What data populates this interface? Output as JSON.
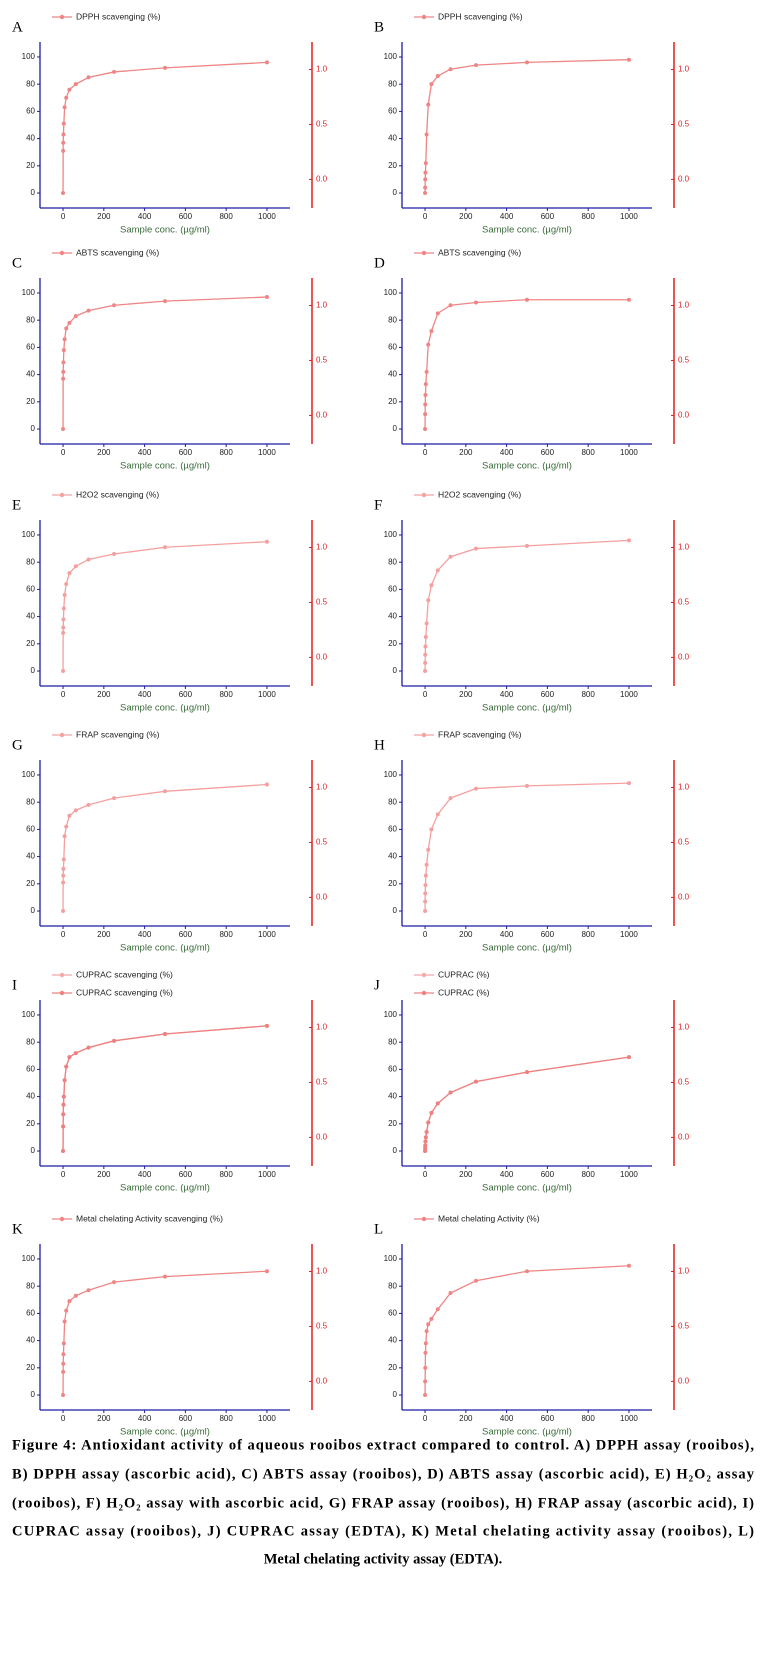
{
  "chart_data": [
    {
      "type": "line",
      "label": "A",
      "xlabel": "Sample conc. (µg/ml)",
      "x": [
        0,
        0.49,
        0.98,
        1.95,
        3.9,
        7.8,
        15.6,
        31.25,
        62.5,
        125,
        250,
        500,
        1000
      ],
      "series": [
        {
          "name": "DPPH scavenging (%)",
          "color": "#ef8585",
          "values": [
            0,
            31,
            37,
            43,
            51,
            63,
            70,
            76,
            80,
            85,
            89,
            92,
            96
          ]
        }
      ],
      "xlim": [
        -113,
        1113
      ],
      "xticks": [
        0,
        200,
        400,
        600,
        800,
        1000
      ],
      "ylim": [
        -11,
        111
      ],
      "yticks": [
        0,
        20,
        40,
        60,
        80,
        100
      ],
      "y2lim": [
        -0.26,
        1.25
      ],
      "y2ticks": [
        {
          "value": 0,
          "label": "0.0"
        },
        {
          "value": 0.5,
          "label": "0.5"
        },
        {
          "value": 1,
          "label": "1.0"
        }
      ]
    },
    {
      "type": "line",
      "label": "B",
      "xlabel": "Sample conc. (µg/ml)",
      "x": [
        0,
        0.49,
        0.98,
        1.95,
        3.9,
        7.8,
        15.6,
        31.25,
        62.5,
        125,
        250,
        500,
        1000
      ],
      "series": [
        {
          "name": "DPPH scavenging (%)",
          "color": "#ef8585",
          "values": [
            0,
            4,
            10,
            15,
            22,
            43,
            65,
            80,
            86,
            91,
            94,
            96,
            98
          ]
        }
      ],
      "xlim": [
        -113,
        1113
      ],
      "xticks": [
        0,
        200,
        400,
        600,
        800,
        1000
      ],
      "ylim": [
        -11,
        111
      ],
      "yticks": [
        0,
        20,
        40,
        60,
        80,
        100
      ],
      "y2lim": [
        -0.26,
        1.25
      ],
      "y2ticks": [
        {
          "value": 0,
          "label": "0.0"
        },
        {
          "value": 0.5,
          "label": "0.5"
        },
        {
          "value": 1,
          "label": "1.0"
        }
      ]
    },
    {
      "type": "line",
      "label": "C",
      "xlabel": "Sample conc. (µg/ml)",
      "x": [
        0,
        0.49,
        0.98,
        1.95,
        3.9,
        7.8,
        15.6,
        31.25,
        62.5,
        125,
        250,
        500,
        1000
      ],
      "series": [
        {
          "name": "ABTS scavenging (%)",
          "color": "#ef8585",
          "values": [
            0,
            37,
            42,
            49,
            58,
            66,
            74,
            78,
            83,
            87,
            91,
            94,
            97
          ]
        }
      ],
      "xlim": [
        -113,
        1113
      ],
      "xticks": [
        0,
        200,
        400,
        600,
        800,
        1000
      ],
      "ylim": [
        -11,
        111
      ],
      "yticks": [
        0,
        20,
        40,
        60,
        80,
        100
      ],
      "y2lim": [
        -0.26,
        1.25
      ],
      "y2ticks": [
        {
          "value": 0,
          "label": "0.0"
        },
        {
          "value": 0.5,
          "label": "0.5"
        },
        {
          "value": 1,
          "label": "1.0"
        }
      ]
    },
    {
      "type": "line",
      "label": "D",
      "xlabel": "Sample conc. (µg/ml)",
      "x": [
        0,
        0.49,
        0.98,
        1.95,
        3.9,
        7.8,
        15.6,
        31.25,
        62.5,
        125,
        250,
        500,
        1000
      ],
      "series": [
        {
          "name": "ABTS scavenging (%)",
          "color": "#ef8585",
          "values": [
            0,
            11,
            18,
            25,
            33,
            42,
            62,
            72,
            85,
            91,
            93,
            95,
            95
          ]
        }
      ],
      "xlim": [
        -113,
        1113
      ],
      "xticks": [
        0,
        200,
        400,
        600,
        800,
        1000
      ],
      "ylim": [
        -11,
        111
      ],
      "yticks": [
        0,
        20,
        40,
        60,
        80,
        100
      ],
      "y2lim": [
        -0.26,
        1.25
      ],
      "y2ticks": [
        {
          "value": 0,
          "label": "0.0"
        },
        {
          "value": 0.5,
          "label": "0.5"
        },
        {
          "value": 1,
          "label": "1.0"
        }
      ]
    },
    {
      "type": "line",
      "label": "E",
      "xlabel": "Sample conc. (µg/ml)",
      "x": [
        0,
        0.49,
        0.98,
        1.95,
        3.9,
        7.8,
        15.6,
        31.25,
        62.5,
        125,
        250,
        500,
        1000
      ],
      "series": [
        {
          "name": "H2O2 scavenging (%)",
          "color": "#f4a0a0",
          "values": [
            0,
            28,
            32,
            38,
            46,
            56,
            64,
            72,
            77,
            82,
            86,
            91,
            95
          ]
        }
      ],
      "xlim": [
        -113,
        1113
      ],
      "xticks": [
        0,
        200,
        400,
        600,
        800,
        1000
      ],
      "ylim": [
        -11,
        111
      ],
      "yticks": [
        0,
        20,
        40,
        60,
        80,
        100
      ],
      "y2lim": [
        -0.26,
        1.25
      ],
      "y2ticks": [
        {
          "value": 0,
          "label": "0.0"
        },
        {
          "value": 0.5,
          "label": "0.5"
        },
        {
          "value": 1,
          "label": "1.0"
        }
      ]
    },
    {
      "type": "line",
      "label": "F",
      "xlabel": "Sample conc. (µg/ml)",
      "x": [
        0,
        0.49,
        0.98,
        1.95,
        3.9,
        7.8,
        15.6,
        31.25,
        62.5,
        125,
        250,
        500,
        1000
      ],
      "series": [
        {
          "name": "H2O2 scavenging (%)",
          "color": "#f4a0a0",
          "values": [
            0,
            6,
            12,
            18,
            25,
            35,
            52,
            63,
            74,
            84,
            90,
            92,
            96
          ]
        }
      ],
      "xlim": [
        -113,
        1113
      ],
      "xticks": [
        0,
        200,
        400,
        600,
        800,
        1000
      ],
      "ylim": [
        -11,
        111
      ],
      "yticks": [
        0,
        20,
        40,
        60,
        80,
        100
      ],
      "y2lim": [
        -0.26,
        1.25
      ],
      "y2ticks": [
        {
          "value": 0,
          "label": "0.0"
        },
        {
          "value": 0.5,
          "label": "0.5"
        },
        {
          "value": 1,
          "label": "1.0"
        }
      ]
    },
    {
      "type": "line",
      "label": "G",
      "xlabel": "Sample conc. (µg/ml)",
      "x": [
        0,
        0.49,
        0.98,
        1.95,
        3.9,
        7.8,
        15.6,
        31.25,
        62.5,
        125,
        250,
        500,
        1000
      ],
      "series": [
        {
          "name": "FRAP scavenging (%)",
          "color": "#f4a0a0",
          "values": [
            0,
            21,
            26,
            31,
            38,
            55,
            62,
            70,
            74,
            78,
            83,
            88,
            93
          ]
        }
      ],
      "xlim": [
        -113,
        1113
      ],
      "xticks": [
        0,
        200,
        400,
        600,
        800,
        1000
      ],
      "ylim": [
        -11,
        111
      ],
      "yticks": [
        0,
        20,
        40,
        60,
        80,
        100
      ],
      "y2lim": [
        -0.26,
        1.25
      ],
      "y2ticks": [
        {
          "value": 0,
          "label": "0.0"
        },
        {
          "value": 0.5,
          "label": "0.5"
        },
        {
          "value": 1,
          "label": "1.0"
        }
      ]
    },
    {
      "type": "line",
      "label": "H",
      "xlabel": "Sample conc. (µg/ml)",
      "x": [
        0,
        0.49,
        0.98,
        1.95,
        3.9,
        7.8,
        15.6,
        31.25,
        62.5,
        125,
        250,
        500,
        1000
      ],
      "series": [
        {
          "name": "FRAP scavenging (%)",
          "color": "#f4a0a0",
          "values": [
            0,
            7,
            13,
            19,
            26,
            34,
            45,
            60,
            71,
            83,
            90,
            92,
            94
          ]
        }
      ],
      "xlim": [
        -113,
        1113
      ],
      "xticks": [
        0,
        200,
        400,
        600,
        800,
        1000
      ],
      "ylim": [
        -11,
        111
      ],
      "yticks": [
        0,
        20,
        40,
        60,
        80,
        100
      ],
      "y2lim": [
        -0.26,
        1.25
      ],
      "y2ticks": [
        {
          "value": 0,
          "label": "0.0"
        },
        {
          "value": 0.5,
          "label": "0.5"
        },
        {
          "value": 1,
          "label": "1.0"
        }
      ]
    },
    {
      "type": "line",
      "label": "I",
      "xlabel": "Sample conc. (µg/ml)",
      "x": [
        0,
        0.49,
        0.98,
        1.95,
        3.9,
        7.8,
        15.6,
        31.25,
        62.5,
        125,
        250,
        500,
        1000
      ],
      "series": [
        {
          "name": "CUPRAC scavenging (%)",
          "color": "#f4a8a8",
          "values": [
            0,
            18,
            27,
            34,
            40,
            52,
            62,
            69,
            72,
            76,
            81,
            86,
            92
          ]
        },
        {
          "name": "CUPRAC scavenging (%)",
          "color": "#ef8080",
          "values": [
            0,
            18,
            27,
            34,
            40,
            52,
            62,
            69,
            72,
            76,
            81,
            86,
            92
          ]
        }
      ],
      "xlim": [
        -113,
        1113
      ],
      "xticks": [
        0,
        200,
        400,
        600,
        800,
        1000
      ],
      "ylim": [
        -11,
        111
      ],
      "yticks": [
        0,
        20,
        40,
        60,
        80,
        100
      ],
      "y2lim": [
        -0.26,
        1.25
      ],
      "y2ticks": [
        {
          "value": 0,
          "label": "0.0"
        },
        {
          "value": 0.5,
          "label": "0.5"
        },
        {
          "value": 1,
          "label": "1.0"
        }
      ]
    },
    {
      "type": "line",
      "label": "J",
      "xlabel": "Sample conc. (µg/ml)",
      "x": [
        0,
        0.49,
        0.98,
        1.95,
        3.9,
        7.8,
        15.6,
        31.25,
        62.5,
        125,
        250,
        500,
        1000
      ],
      "series": [
        {
          "name": "CUPRAC (%)",
          "color": "#f4a8a8",
          "values": [
            0,
            2,
            4,
            7,
            10,
            14,
            21,
            28,
            35,
            43,
            51,
            58,
            69
          ]
        },
        {
          "name": "CUPRAC (%)",
          "color": "#ef8080",
          "values": [
            0,
            2,
            4,
            7,
            10,
            14,
            21,
            28,
            35,
            43,
            51,
            58,
            69
          ]
        }
      ],
      "xlim": [
        -113,
        1113
      ],
      "xticks": [
        0,
        200,
        400,
        600,
        800,
        1000
      ],
      "ylim": [
        -11,
        111
      ],
      "yticks": [
        0,
        20,
        40,
        60,
        80,
        100
      ],
      "y2lim": [
        -0.26,
        1.25
      ],
      "y2ticks": [
        {
          "value": 0,
          "label": "0.0"
        },
        {
          "value": 0.5,
          "label": "0.5"
        },
        {
          "value": 1,
          "label": "1.0"
        }
      ]
    },
    {
      "type": "line",
      "label": "K",
      "xlabel": "Sample conc. (µg/ml)",
      "x": [
        0,
        0.49,
        0.98,
        1.95,
        3.9,
        7.8,
        15.6,
        31.25,
        62.5,
        125,
        250,
        500,
        1000
      ],
      "series": [
        {
          "name": "Metal chelating Activity  scavenging (%)",
          "color": "#ef8585",
          "values": [
            0,
            17,
            23,
            30,
            38,
            54,
            62,
            69,
            73,
            77,
            83,
            87,
            91
          ]
        }
      ],
      "xlim": [
        -113,
        1113
      ],
      "xticks": [
        0,
        200,
        400,
        600,
        800,
        1000
      ],
      "ylim": [
        -11,
        111
      ],
      "yticks": [
        0,
        20,
        40,
        60,
        80,
        100
      ],
      "y2lim": [
        -0.26,
        1.25
      ],
      "y2ticks": [
        {
          "value": 0,
          "label": "0.0"
        },
        {
          "value": 0.5,
          "label": "0.5"
        },
        {
          "value": 1,
          "label": "1.0"
        }
      ]
    },
    {
      "type": "line",
      "label": "L",
      "xlabel": "Sample conc. (µg/ml)",
      "x": [
        0,
        0.49,
        0.98,
        1.95,
        3.9,
        7.8,
        15.6,
        31.25,
        62.5,
        125,
        250,
        500,
        1000
      ],
      "series": [
        {
          "name": "Metal chelating Activity (%)",
          "color": "#ef8585",
          "values": [
            0,
            10,
            20,
            31,
            38,
            47,
            52,
            56,
            63,
            75,
            84,
            91,
            95
          ]
        }
      ],
      "xlim": [
        -113,
        1113
      ],
      "xticks": [
        0,
        200,
        400,
        600,
        800,
        1000
      ],
      "ylim": [
        -11,
        111
      ],
      "yticks": [
        0,
        20,
        40,
        60,
        80,
        100
      ],
      "y2lim": [
        -0.26,
        1.25
      ],
      "y2ticks": [
        {
          "value": 0,
          "label": "0.0"
        },
        {
          "value": 0.5,
          "label": "0.5"
        },
        {
          "value": 1,
          "label": "1.0"
        }
      ]
    }
  ],
  "caption": [
    "Figure 4: Antioxidant activity of aqueous rooibos extract compared to control. A) DPPH assay (rooibos),",
    "B) DPPH assay (ascorbic acid), C) ABTS assay (rooibos), D) ABTS assay (ascorbic acid), E) H₂O₂ assay",
    "(rooibos), F) H₂O₂ assay with ascorbic acid, G) FRAP assay (rooibos), H) FRAP assay (ascorbic acid), I)",
    "CUPRAC assay (rooibos), J) CUPRAC assay (EDTA), K) Metal chelating activity assay (rooibos), L)",
    "Metal chelating activity assay (EDTA)."
  ]
}
